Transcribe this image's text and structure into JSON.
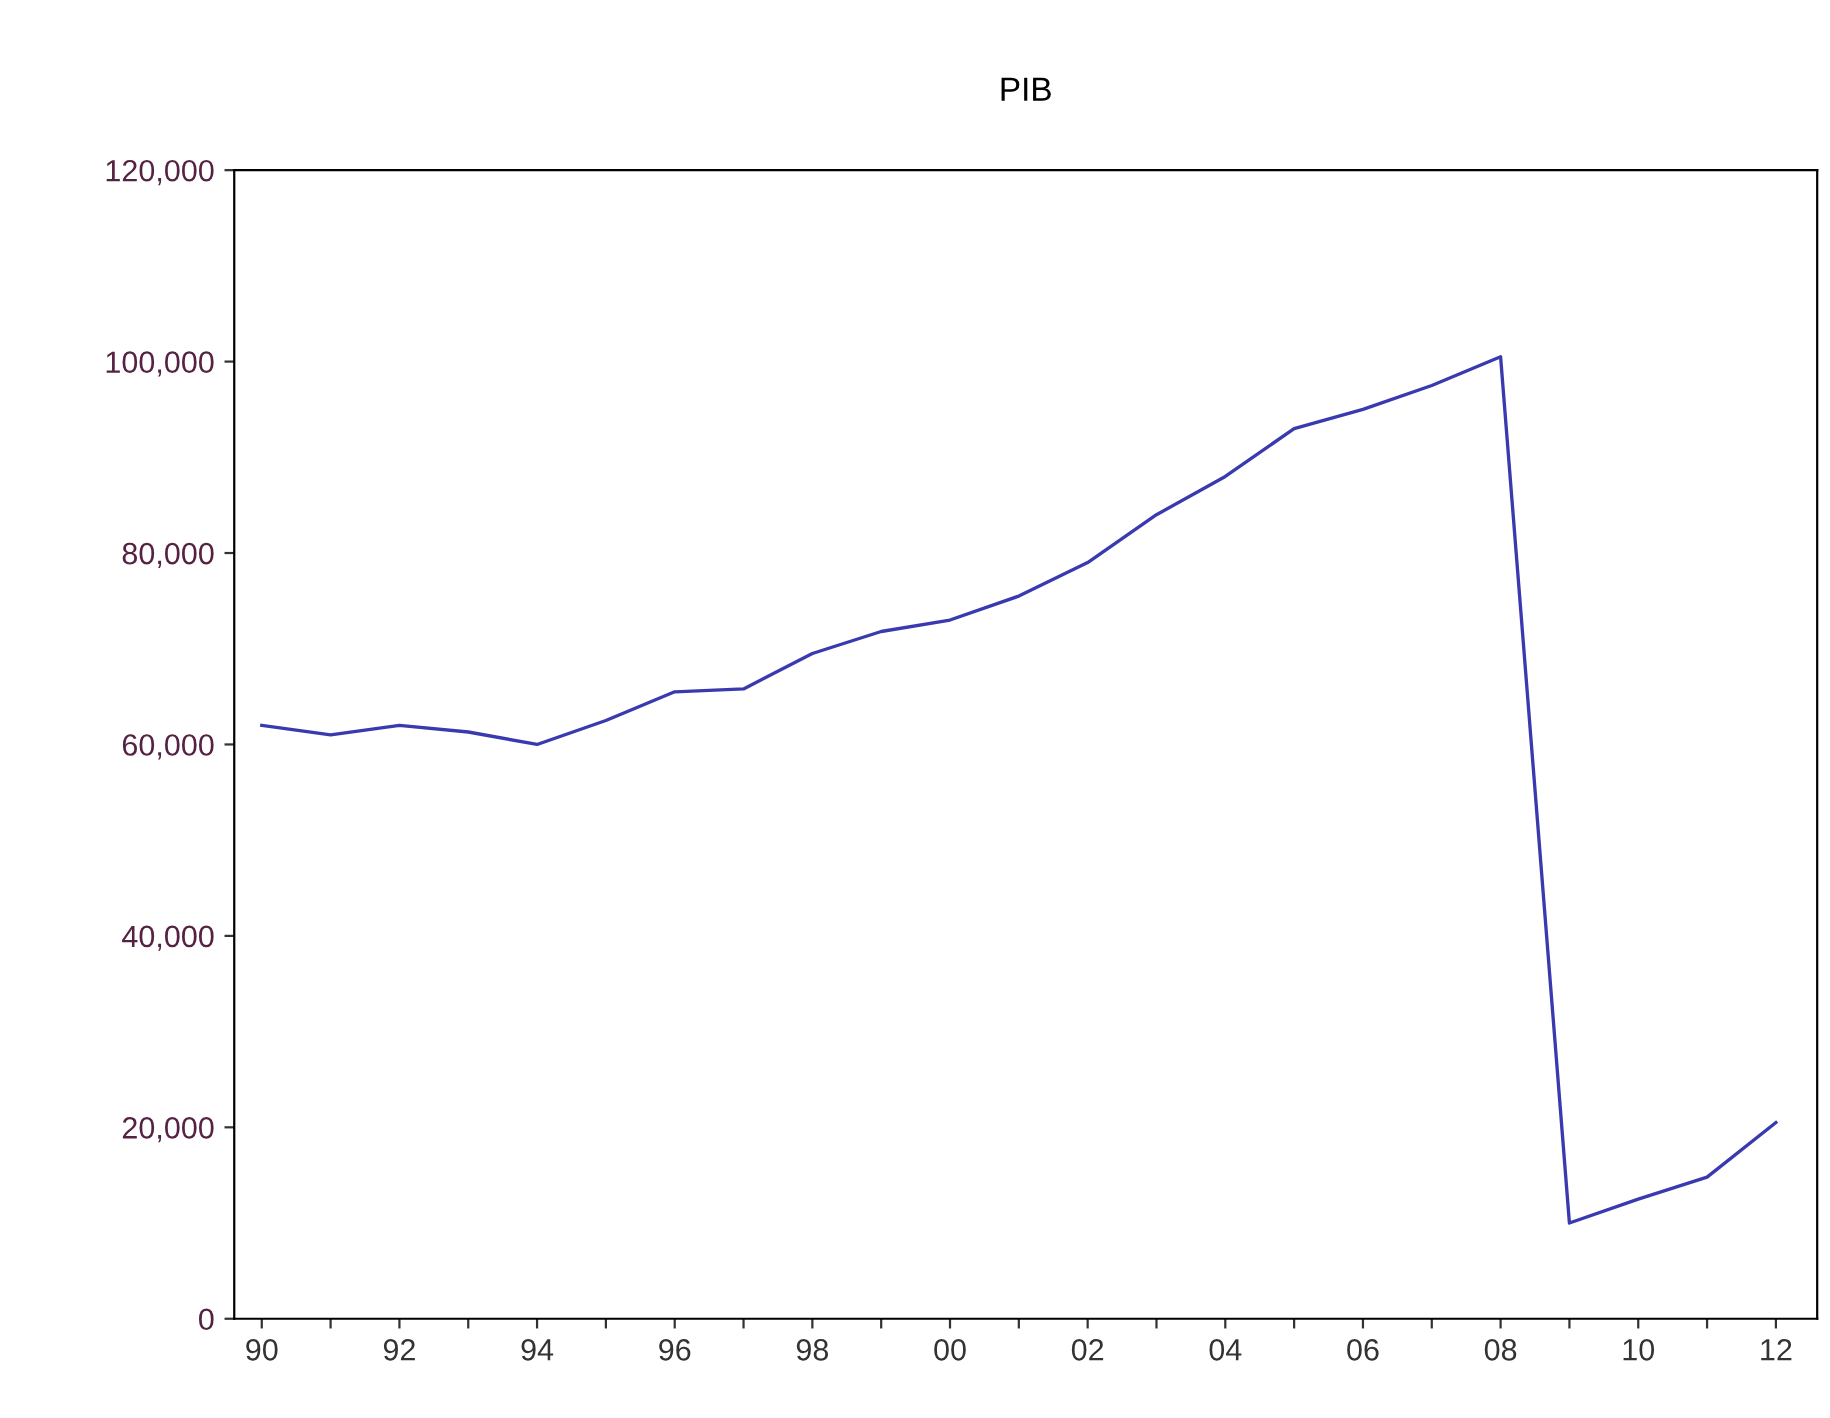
{
  "chart_data": {
    "type": "line",
    "title": "PIB",
    "x": [
      1990,
      1991,
      1992,
      1993,
      1994,
      1995,
      1996,
      1997,
      1998,
      1999,
      2000,
      2001,
      2002,
      2003,
      2004,
      2005,
      2006,
      2007,
      2008,
      2009,
      2010,
      2011,
      2012
    ],
    "series": [
      {
        "color": "#3a3ab0",
        "values": [
          62000,
          61000,
          62000,
          61300,
          60000,
          62500,
          65500,
          65800,
          69500,
          71800,
          73000,
          75500,
          79000,
          84000,
          88000,
          93000,
          95000,
          97500,
          100500,
          10000,
          12500,
          14800,
          20500
        ]
      }
    ],
    "xlim": [
      1989.6,
      2012.6
    ],
    "xticks": [
      {
        "value": 1990,
        "label": "90"
      },
      {
        "value": 1991,
        "label": null
      },
      {
        "value": 1992,
        "label": "92"
      },
      {
        "value": 1993,
        "label": null
      },
      {
        "value": 1994,
        "label": "94"
      },
      {
        "value": 1995,
        "label": null
      },
      {
        "value": 1996,
        "label": "96"
      },
      {
        "value": 1997,
        "label": null
      },
      {
        "value": 1998,
        "label": "98"
      },
      {
        "value": 1999,
        "label": null
      },
      {
        "value": 2000,
        "label": "00"
      },
      {
        "value": 2001,
        "label": null
      },
      {
        "value": 2002,
        "label": "02"
      },
      {
        "value": 2003,
        "label": null
      },
      {
        "value": 2004,
        "label": "04"
      },
      {
        "value": 2005,
        "label": null
      },
      {
        "value": 2006,
        "label": "06"
      },
      {
        "value": 2007,
        "label": null
      },
      {
        "value": 2008,
        "label": "08"
      },
      {
        "value": 2009,
        "label": null
      },
      {
        "value": 2010,
        "label": "10"
      },
      {
        "value": 2011,
        "label": null
      },
      {
        "value": 2012,
        "label": "12"
      }
    ],
    "ylim": [
      0,
      120000
    ],
    "yticks": [
      {
        "value": 0,
        "label": "0"
      },
      {
        "value": 20000,
        "label": "20,000"
      },
      {
        "value": 40000,
        "label": "40,000"
      },
      {
        "value": 60000,
        "label": "60,000"
      },
      {
        "value": 80000,
        "label": "80,000"
      },
      {
        "value": 100000,
        "label": "100,000"
      },
      {
        "value": 120000,
        "label": "120,000"
      }
    ],
    "grid": false,
    "marker": "none",
    "line_style": "solid"
  }
}
